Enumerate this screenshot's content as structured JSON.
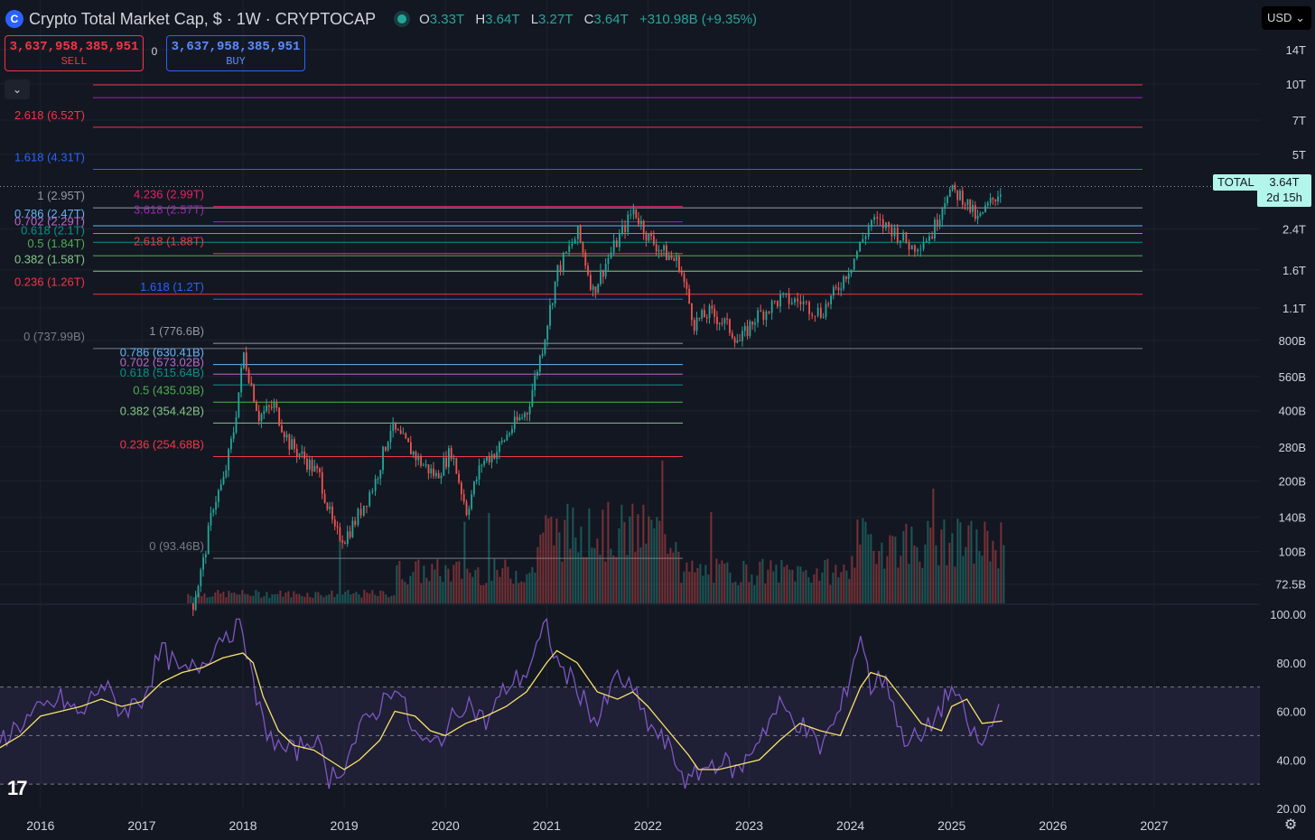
{
  "header": {
    "logo_glyph": "C",
    "title": "Crypto Total Market Cap, $ · 1W · CRYPTOCAP",
    "ohlc": [
      {
        "label": "O",
        "value": "3.33T"
      },
      {
        "label": "H",
        "value": "3.64T"
      },
      {
        "label": "L",
        "value": "3.27T"
      },
      {
        "label": "C",
        "value": "3.64T"
      }
    ],
    "change": "+310.98B (+9.35%)"
  },
  "trade": {
    "sell_price": "3,637,958,385,951",
    "sell_label": "SELL",
    "buy_price": "3,637,958,385,951",
    "buy_label": "BUY",
    "spread": "0"
  },
  "currency": "USD",
  "price_tag": {
    "symbol": "TOTAL",
    "price": "3.64T",
    "countdown": "2d 15h"
  },
  "icons": {
    "collapse": "chevron-down-icon",
    "settings": "gear-icon",
    "logo": "tradingview-logo"
  },
  "colors": {
    "bg": "#131722",
    "up": "#26a69a",
    "down": "#ef5350",
    "rsi": "#7e57c2",
    "rsi_ma": "#f7e26b",
    "grid": "#1e222d",
    "text": "#d1d4dc"
  },
  "chart_data": [
    {
      "type": "candlestick",
      "title": "Crypto Total Market Cap, $ · 1W · CRYPTOCAP",
      "y_scale": "log",
      "y_ticks": [
        "14T",
        "10T",
        "7T",
        "5T",
        "2.4T",
        "1.6T",
        "1.1T",
        "800B",
        "560B",
        "400B",
        "280B",
        "200B",
        "140B",
        "100B",
        "72.5B"
      ],
      "y_tick_values": [
        14000,
        10000,
        7000,
        5000,
        2400,
        1600,
        1100,
        800,
        560,
        400,
        280,
        200,
        140,
        100,
        72.5
      ],
      "ylim_billion": [
        60,
        16000
      ],
      "x_ticks": [
        "2016",
        "2017",
        "2018",
        "2019",
        "2020",
        "2021",
        "2022",
        "2023",
        "2024",
        "2025",
        "2026",
        "2027"
      ],
      "xlim_year": [
        2015.6,
        2028.0
      ],
      "price_path_billion": [
        [
          2017.5,
          60
        ],
        [
          2017.6,
          90
        ],
        [
          2017.7,
          160
        ],
        [
          2017.8,
          200
        ],
        [
          2017.9,
          330
        ],
        [
          2018.0,
          700
        ],
        [
          2018.05,
          570
        ],
        [
          2018.15,
          380
        ],
        [
          2018.3,
          420
        ],
        [
          2018.45,
          290
        ],
        [
          2018.6,
          250
        ],
        [
          2018.75,
          210
        ],
        [
          2018.9,
          120
        ],
        [
          2019.0,
          115
        ],
        [
          2019.1,
          135
        ],
        [
          2019.3,
          200
        ],
        [
          2019.45,
          340
        ],
        [
          2019.6,
          290
        ],
        [
          2019.75,
          240
        ],
        [
          2019.9,
          210
        ],
        [
          2020.05,
          270
        ],
        [
          2020.2,
          150
        ],
        [
          2020.35,
          240
        ],
        [
          2020.5,
          270
        ],
        [
          2020.65,
          340
        ],
        [
          2020.8,
          400
        ],
        [
          2020.95,
          750
        ],
        [
          2021.1,
          1600
        ],
        [
          2021.3,
          2300
        ],
        [
          2021.45,
          1300
        ],
        [
          2021.6,
          1800
        ],
        [
          2021.85,
          2900
        ],
        [
          2022.0,
          2200
        ],
        [
          2022.15,
          1900
        ],
        [
          2022.3,
          1700
        ],
        [
          2022.45,
          950
        ],
        [
          2022.6,
          1050
        ],
        [
          2022.75,
          950
        ],
        [
          2022.9,
          790
        ],
        [
          2023.05,
          1000
        ],
        [
          2023.3,
          1200
        ],
        [
          2023.5,
          1170
        ],
        [
          2023.7,
          1050
        ],
        [
          2023.85,
          1300
        ],
        [
          2024.0,
          1700
        ],
        [
          2024.2,
          2600
        ],
        [
          2024.4,
          2400
        ],
        [
          2024.6,
          2000
        ],
        [
          2024.8,
          2300
        ],
        [
          2024.95,
          3500
        ],
        [
          2025.1,
          3300
        ],
        [
          2025.25,
          2600
        ],
        [
          2025.4,
          3200
        ],
        [
          2025.5,
          3640
        ]
      ],
      "last_price": "3.64T"
    },
    {
      "type": "line",
      "name": "RSI",
      "y_ticks": [
        "100.00",
        "80.00",
        "60.00",
        "40.00",
        "20.00"
      ],
      "y_tick_values": [
        100,
        80,
        60,
        40,
        20
      ],
      "ylim": [
        20,
        100
      ],
      "bands": [
        30,
        50,
        70
      ],
      "x": [
        2015.6,
        2015.8,
        2016.0,
        2016.2,
        2016.4,
        2016.6,
        2016.8,
        2017.0,
        2017.2,
        2017.4,
        2017.6,
        2017.8,
        2018.0,
        2018.1,
        2018.2,
        2018.35,
        2018.5,
        2018.7,
        2018.85,
        2019.0,
        2019.15,
        2019.35,
        2019.5,
        2019.7,
        2019.85,
        2020.0,
        2020.2,
        2020.4,
        2020.6,
        2020.8,
        2021.0,
        2021.1,
        2021.3,
        2021.5,
        2021.7,
        2021.85,
        2022.0,
        2022.2,
        2022.4,
        2022.5,
        2022.7,
        2022.9,
        2023.1,
        2023.3,
        2023.5,
        2023.7,
        2023.9,
        2024.1,
        2024.2,
        2024.35,
        2024.5,
        2024.7,
        2024.9,
        2025.0,
        2025.15,
        2025.3,
        2025.5
      ],
      "values": [
        48,
        55,
        60,
        65,
        58,
        72,
        60,
        65,
        85,
        75,
        80,
        92,
        95,
        70,
        55,
        45,
        43,
        50,
        33,
        38,
        52,
        62,
        72,
        50,
        45,
        52,
        65,
        55,
        70,
        76,
        95,
        80,
        70,
        55,
        75,
        68,
        55,
        45,
        30,
        35,
        40,
        35,
        50,
        62,
        55,
        45,
        60,
        92,
        70,
        75,
        50,
        48,
        62,
        70,
        55,
        45,
        65
      ],
      "ma_values": [
        45,
        50,
        58,
        60,
        62,
        65,
        62,
        64,
        72,
        76,
        78,
        82,
        84,
        80,
        66,
        52,
        46,
        44,
        40,
        36,
        40,
        48,
        60,
        58,
        52,
        50,
        55,
        58,
        62,
        68,
        80,
        85,
        80,
        68,
        65,
        68,
        62,
        52,
        42,
        36,
        36,
        38,
        40,
        48,
        55,
        52,
        50,
        70,
        76,
        74,
        66,
        55,
        52,
        62,
        65,
        55,
        56
      ]
    }
  ],
  "fib_sets": [
    {
      "id": "outer",
      "levels": [
        {
          "label": "2.618 (6.52T)",
          "color": "#f23645"
        },
        {
          "label": "1.618 (4.31T)",
          "color": "#2962ff"
        },
        {
          "label": "1 (2.95T)",
          "color": "#9598a1"
        },
        {
          "label": "0.786 (2.47T)",
          "color": "#64b5f6"
        },
        {
          "label": "0.702 (2.29T)",
          "color": "#ba68c8"
        },
        {
          "label": "0.618 (2.1T)",
          "color": "#009688"
        },
        {
          "label": "0.5 (1.84T)",
          "color": "#4caf50"
        },
        {
          "label": "0.382 (1.58T)",
          "color": "#81c784"
        },
        {
          "label": "0.236 (1.26T)",
          "color": "#f23645"
        },
        {
          "label": "0 (737.99B)",
          "color": "#787b86"
        }
      ]
    },
    {
      "id": "mid",
      "levels": [
        {
          "label": "4.236 (2.99T)",
          "color": "#e91e63"
        },
        {
          "label": "3.618 (2.57T)",
          "color": "#9c27b0"
        },
        {
          "label": "2.618 (1.88T)",
          "color": "#f23645"
        },
        {
          "label": "1.618 (1.2T)",
          "color": "#2962ff"
        },
        {
          "label": "1 (776.6B)",
          "color": "#9598a1"
        },
        {
          "label": "0.786 (630.41B)",
          "color": "#64b5f6"
        },
        {
          "label": "0.702 (573.02B)",
          "color": "#ba68c8"
        },
        {
          "label": "0.618 (515.64B)",
          "color": "#009688"
        },
        {
          "label": "0.5 (435.03B)",
          "color": "#4caf50"
        },
        {
          "label": "0.382 (354.42B)",
          "color": "#81c784"
        },
        {
          "label": "0.236 (254.68B)",
          "color": "#f23645"
        },
        {
          "label": "0 (93.46B)",
          "color": "#787b86"
        }
      ]
    }
  ]
}
